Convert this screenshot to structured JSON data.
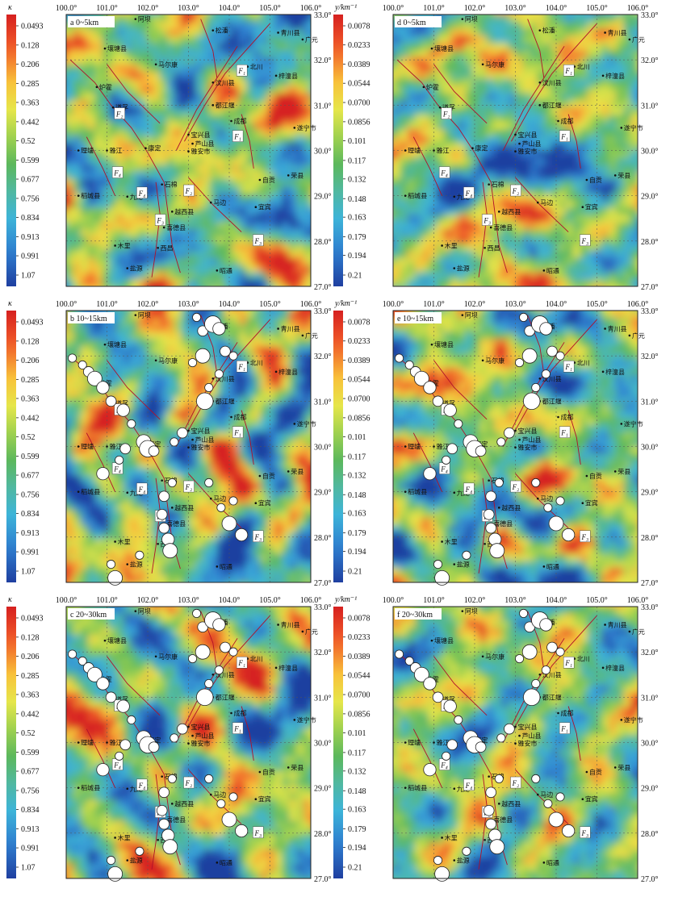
{
  "map": {
    "xlim": [
      100,
      106
    ],
    "ylim": [
      27,
      33
    ],
    "xticks": [
      {
        "value": 100,
        "label": "100.0°"
      },
      {
        "value": 101,
        "label": "101.0°"
      },
      {
        "value": 102,
        "label": "102.0°"
      },
      {
        "value": 103,
        "label": "103.0°"
      },
      {
        "value": 104,
        "label": "104.0°"
      },
      {
        "value": 105,
        "label": "105.0°"
      },
      {
        "value": 106,
        "label": "106.0°"
      }
    ],
    "yticks": [
      {
        "value": 27,
        "label": "27.0°"
      },
      {
        "value": 28,
        "label": "28.0°"
      },
      {
        "value": 29,
        "label": "29.0°"
      },
      {
        "value": 30,
        "label": "30.0°"
      },
      {
        "value": 31,
        "label": "31.0°"
      },
      {
        "value": 32,
        "label": "32.0°"
      },
      {
        "value": 33,
        "label": "33.0°"
      }
    ]
  },
  "colorbars": {
    "kappa": {
      "title": "κ",
      "ticks": [
        0.0493,
        0.128,
        0.206,
        0.285,
        0.363,
        0.442,
        0.52,
        0.599,
        0.677,
        0.756,
        0.834,
        0.913,
        0.991,
        1.07
      ]
    },
    "y": {
      "title": "y/km⁻¹",
      "ticks": [
        0.0078,
        0.0233,
        0.0389,
        0.0544,
        {
          "value": 0.07,
          "label": "0.0700"
        },
        0.0856,
        0.101,
        0.117,
        0.132,
        0.148,
        0.163,
        0.179,
        0.194,
        0.21
      ]
    }
  },
  "panels": [
    {
      "label": "a 0~5km",
      "colorbar": "kappa",
      "events": false
    },
    {
      "label": "d 0~5km",
      "colorbar": "y",
      "events": false
    },
    {
      "label": "b 10~15km",
      "colorbar": "kappa",
      "events": true
    },
    {
      "label": "e 10~15km",
      "colorbar": "y",
      "events": true
    },
    {
      "label": "c 20~30km",
      "colorbar": "kappa",
      "events": true
    },
    {
      "label": "f 20~30km",
      "colorbar": "y",
      "events": true
    }
  ],
  "places": {
    "names": [
      "阿坝",
      "松潘",
      "青川县",
      "广元",
      "壤塘县",
      "马尔康",
      "北川",
      "梓潼县",
      "汶川县",
      "炉霍",
      "道孚",
      "都江堰",
      "成都",
      "遂宁市",
      "宝兴县",
      "芦山县",
      "雅安市",
      "理塘",
      "雅江",
      "康定",
      "稻城县",
      "九龙",
      "石棉",
      "自贡",
      "荣县",
      "马边",
      "越西县",
      "宜宾",
      "喜德县",
      "木里",
      "西昌",
      "盐源",
      "昭通"
    ],
    "lon": [
      101.7,
      103.6,
      105.2,
      105.8,
      100.95,
      102.2,
      104.45,
      105.15,
      103.6,
      100.75,
      101.15,
      103.6,
      104.05,
      105.6,
      103.0,
      103.1,
      103.0,
      100.3,
      101.0,
      101.95,
      100.3,
      101.5,
      102.35,
      104.75,
      105.45,
      103.55,
      102.6,
      104.65,
      102.4,
      101.2,
      102.25,
      101.5,
      103.7
    ],
    "lat": [
      32.9,
      32.65,
      32.6,
      32.45,
      32.25,
      31.9,
      31.85,
      31.65,
      31.5,
      31.4,
      30.95,
      31.0,
      30.65,
      30.5,
      30.35,
      30.15,
      29.98,
      30.0,
      30.0,
      30.05,
      29.0,
      28.98,
      29.25,
      29.35,
      29.45,
      28.85,
      28.65,
      28.75,
      28.3,
      27.9,
      27.85,
      27.4,
      27.35
    ]
  },
  "faults": {
    "names": [
      "F₁",
      "F₁",
      "F₂",
      "F₂",
      "F₃",
      "F₃",
      "F₄",
      "F₄"
    ],
    "lon": [
      104.3,
      104.2,
      101.3,
      103.0,
      102.3,
      104.7,
      101.25,
      101.85
    ],
    "lat": [
      31.75,
      30.3,
      30.8,
      29.1,
      28.45,
      28.0,
      29.5,
      29.05
    ]
  },
  "events": {
    "lon": [
      100.15,
      100.4,
      100.55,
      100.7,
      100.9,
      101.1,
      101.4,
      101.6,
      101.9,
      102.0,
      102.15,
      101.3,
      100.9,
      102.6,
      102.4,
      102.35,
      102.4,
      102.5,
      102.55,
      101.8,
      101.2,
      101.1,
      103.35,
      103.6,
      103.75,
      103.2,
      103.35,
      103.1,
      103.4,
      103.5,
      103.75,
      104.1,
      103.9,
      102.85,
      102.65,
      103.5,
      104.1,
      103.8,
      104.0,
      104.3,
      101.45
    ],
    "lat": [
      31.95,
      31.8,
      31.65,
      31.5,
      31.3,
      31.0,
      30.8,
      30.5,
      30.1,
      29.95,
      29.9,
      29.7,
      29.4,
      29.2,
      28.9,
      28.5,
      28.2,
      27.95,
      27.7,
      27.6,
      27.1,
      27.4,
      32.55,
      32.7,
      32.6,
      32.85,
      32.0,
      31.85,
      31.0,
      31.3,
      31.6,
      32.0,
      32.1,
      30.3,
      30.1,
      29.2,
      28.8,
      28.65,
      28.3,
      28.05,
      29.95
    ],
    "magnitude": [
      5,
      5,
      5.5,
      6.5,
      6,
      5.5,
      6,
      5,
      6.5,
      7,
      5.5,
      5,
      6,
      5,
      5.5,
      5.5,
      5.5,
      6,
      6.5,
      5,
      6.5,
      5,
      5.5,
      7,
      6,
      5,
      6.5,
      5,
      7,
      5,
      5,
      5,
      5.5,
      5.5,
      5,
      5,
      5,
      5,
      6.5,
      6,
      5.5
    ]
  }
}
